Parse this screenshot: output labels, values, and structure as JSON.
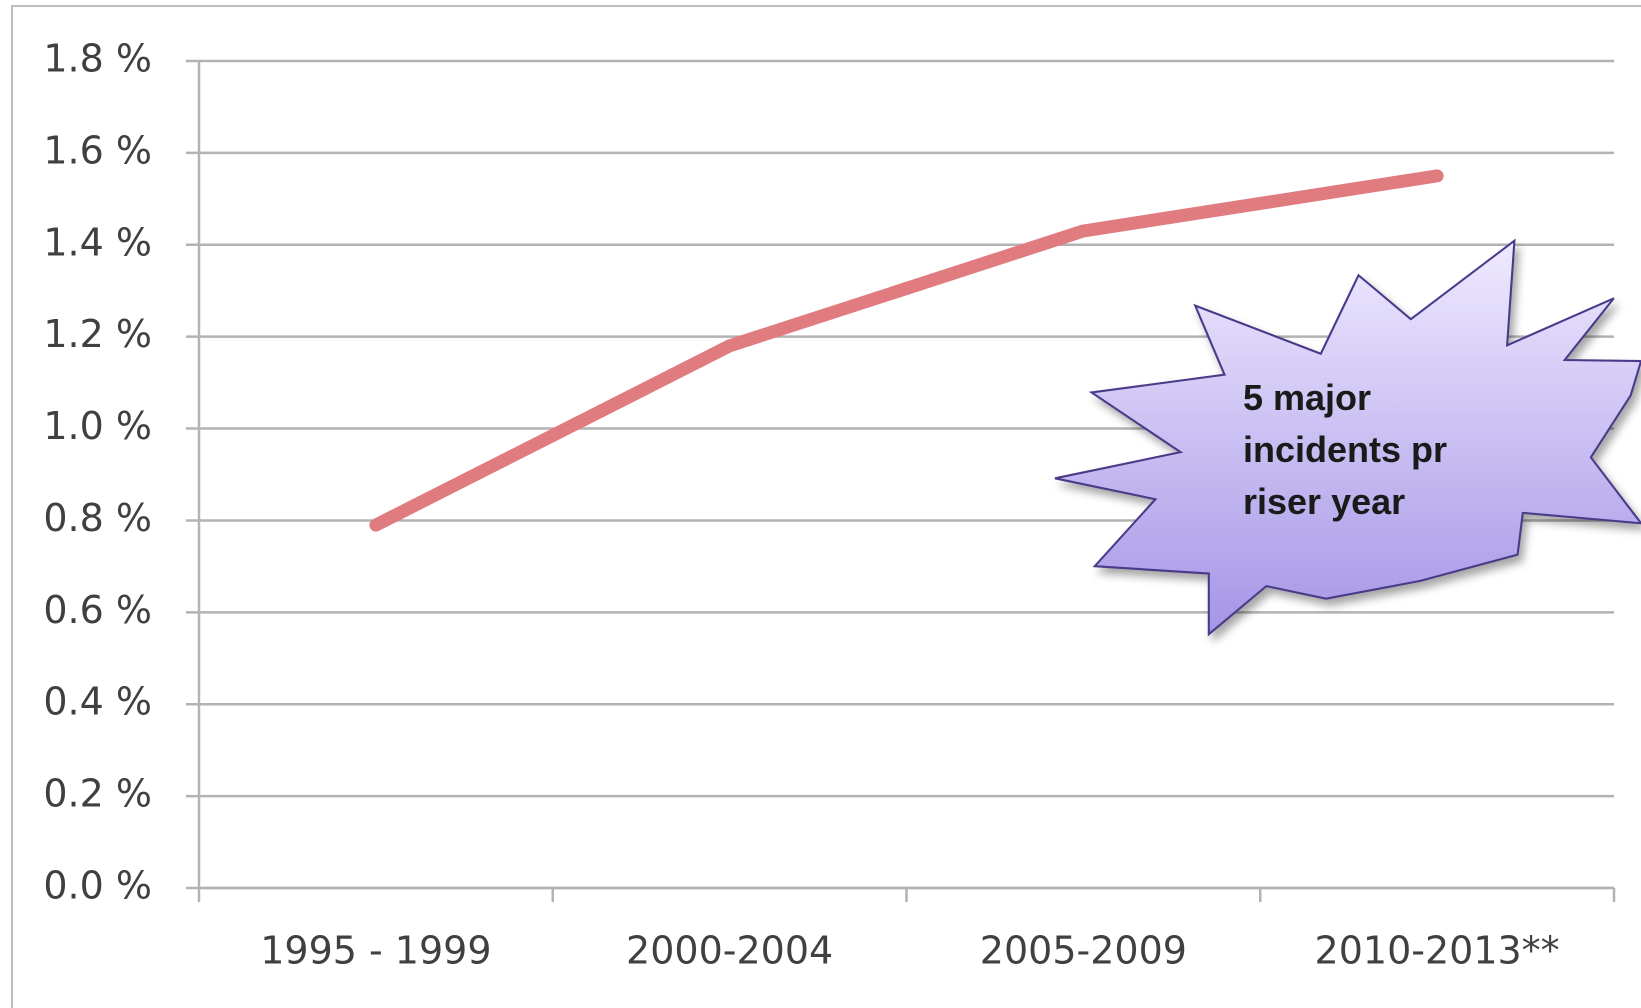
{
  "chart_data": {
    "type": "line",
    "categories": [
      "1995 - 1999",
      "2000-2004",
      "2005-2009",
      "2010-2013**"
    ],
    "series": [
      {
        "color": "#e07b80",
        "values": [
          0.79,
          1.18,
          1.43,
          1.55
        ]
      }
    ],
    "ylim": [
      0,
      1.8
    ],
    "yticks": [
      {
        "value": 0,
        "label": "0.0 %"
      },
      {
        "value": 0.2,
        "label": "0.2 %"
      },
      {
        "value": 0.4,
        "label": "0.4 %"
      },
      {
        "value": 0.6,
        "label": "0.6 %"
      },
      {
        "value": 0.8,
        "label": "0.8 %"
      },
      {
        "value": 1.0,
        "label": "1.0 %"
      },
      {
        "value": 1.2,
        "label": "1.2 %"
      },
      {
        "value": 1.4,
        "label": "1.4 %"
      },
      {
        "value": 1.6,
        "label": "1.6 %"
      },
      {
        "value": 1.8,
        "label": "1.8 %"
      }
    ],
    "grid": true,
    "annotation": "5 major incidents pr riser year"
  }
}
